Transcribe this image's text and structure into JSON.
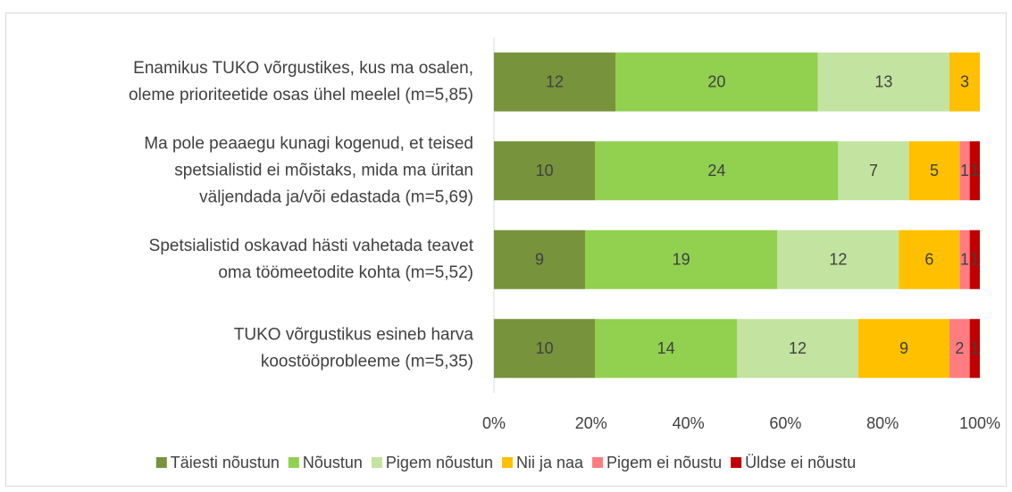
{
  "chart_data": {
    "type": "bar",
    "orientation": "horizontal",
    "stacking": "percent",
    "categories": [
      [
        "Enamikus TUKO võrgustikes, kus ma osalen,",
        "oleme prioriteetide osas ühel meelel (m=5,85)"
      ],
      [
        "Ma pole peaaegu kunagi kogenud, et teised",
        "spetsialistid ei mõistaks, mida ma üritan",
        "väljendada ja/või edastada (m=5,69)"
      ],
      [
        "Spetsialistid oskavad hästi vahetada teavet",
        "oma töömeetodite kohta (m=5,52)"
      ],
      [
        "TUKO võrgustikus esineb harva",
        "koostööprobleeme (m=5,35)"
      ]
    ],
    "series": [
      {
        "name": "Täiesti nõustun",
        "color": "#77933c",
        "values": [
          12,
          10,
          9,
          10
        ]
      },
      {
        "name": "Nõustun",
        "color": "#92d050",
        "values": [
          20,
          24,
          19,
          14
        ]
      },
      {
        "name": "Pigem nõustun",
        "color": "#c3e3a0",
        "values": [
          13,
          7,
          12,
          12
        ]
      },
      {
        "name": "Nii ja naa",
        "color": "#ffc000",
        "values": [
          3,
          5,
          6,
          9
        ]
      },
      {
        "name": "Pigem ei nõustu",
        "color": "#ff7c80",
        "values": [
          null,
          1,
          1,
          2
        ]
      },
      {
        "name": "Üldse ei nõustu",
        "color": "#c00000",
        "values": [
          null,
          1,
          1,
          1
        ]
      }
    ],
    "xlim": [
      0,
      100
    ],
    "xticks": [
      {
        "value": 0,
        "label": "0%"
      },
      {
        "value": 20,
        "label": "20%"
      },
      {
        "value": 40,
        "label": "40%"
      },
      {
        "value": 60,
        "label": "60%"
      },
      {
        "value": 80,
        "label": "80%"
      },
      {
        "value": 100,
        "label": "100%"
      }
    ],
    "legend": "bottom"
  }
}
